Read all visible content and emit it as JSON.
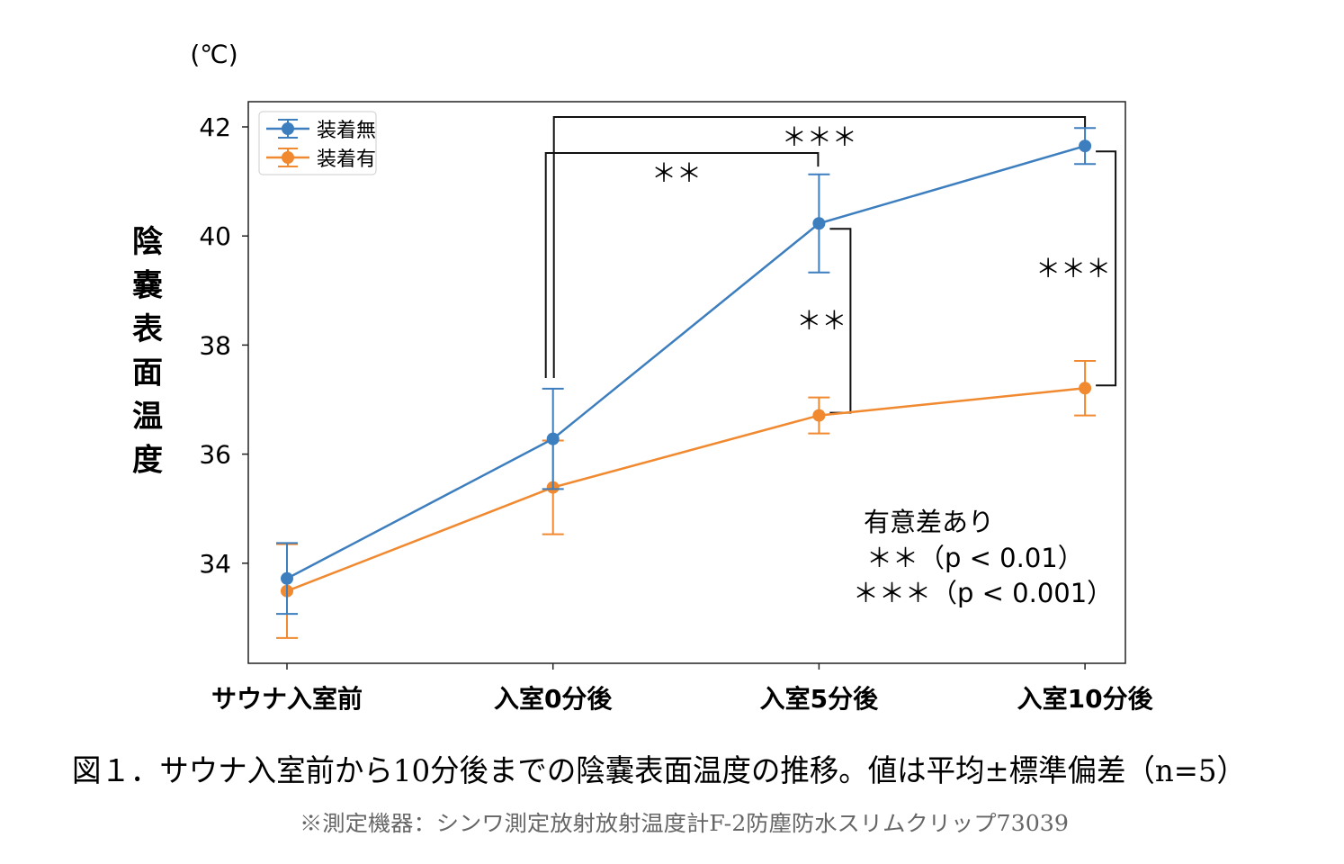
{
  "chart_data": {
    "type": "line",
    "unit_label": "(℃)",
    "ylabel": "陰嚢表面温度",
    "categories": [
      "サウナ入室前",
      "入室0分後",
      "入室5分後",
      "入室10分後"
    ],
    "ylim": [
      32.2,
      42.45
    ],
    "yticks": [
      34,
      36,
      38,
      40,
      42
    ],
    "grid": false,
    "legend_position": "top-left",
    "series": [
      {
        "name": "装着無",
        "color": "#3d7ebf",
        "values": [
          33.72,
          36.28,
          40.23,
          41.65
        ],
        "sd": [
          0.65,
          0.92,
          0.9,
          0.33
        ]
      },
      {
        "name": "装着有",
        "color": "#f0892f",
        "values": [
          33.49,
          35.39,
          36.71,
          37.21
        ],
        "sd": [
          0.86,
          0.86,
          0.33,
          0.5
        ]
      }
    ],
    "significance": [
      {
        "type": "within",
        "series": 0,
        "from": 1,
        "to": 2,
        "label": "＊＊"
      },
      {
        "type": "within",
        "series": 0,
        "from": 1,
        "to": 3,
        "label": "＊＊＊"
      },
      {
        "type": "between",
        "at": 2,
        "label": "＊＊"
      },
      {
        "type": "between",
        "at": 3,
        "label": "＊＊＊"
      }
    ],
    "annotation": {
      "title": "有意差あり",
      "lines": [
        "＊＊（p < 0.01）",
        "＊＊＊（p < 0.001）"
      ]
    },
    "caption": "図１．サウナ入室前から10分後までの陰嚢表面温度の推移。値は平均±標準偏差（n=5）",
    "note": "※測定機器：シンワ測定放射放射温度計F-2防塵防水スリムクリップ73039"
  }
}
